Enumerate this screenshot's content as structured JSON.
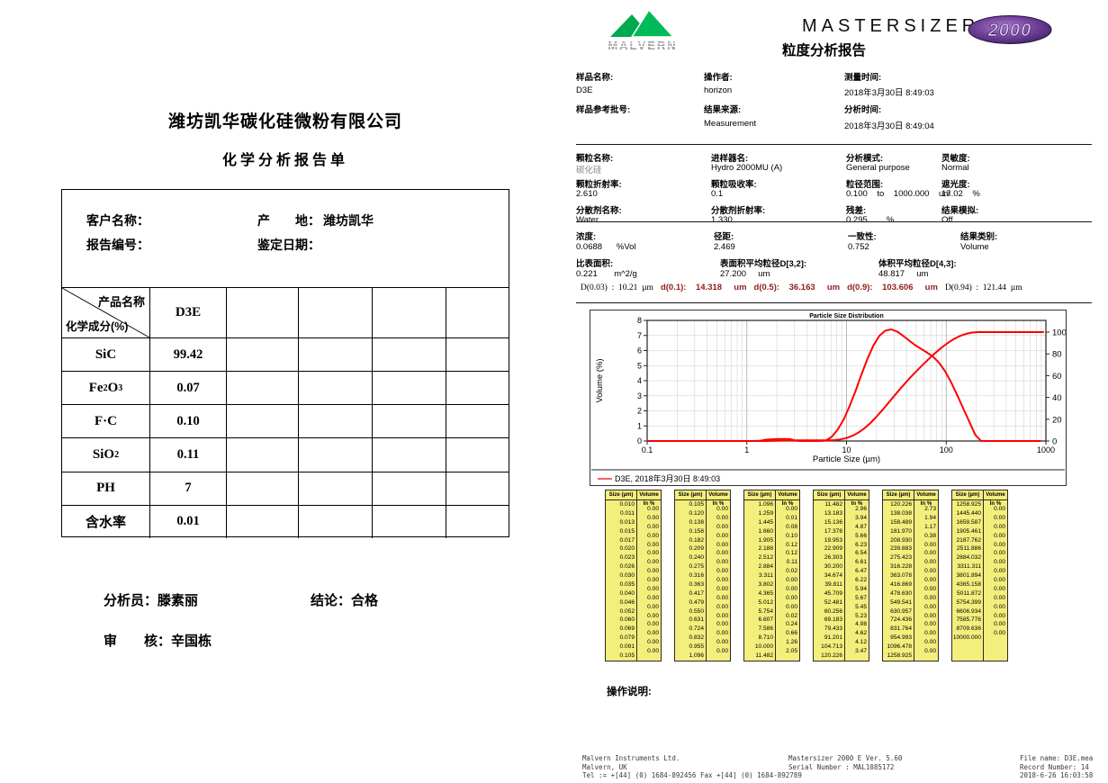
{
  "left_doc": {
    "title": "潍坊凯华碳化硅微粉有限公司",
    "subtitle": "化学分析报告单",
    "info": {
      "customer_label": "客户名称：",
      "origin_label": "产　　地：",
      "origin_value": "潍坊凯华",
      "report_no_label": "报告编号：",
      "assess_date_label": "鉴定日期："
    },
    "table": {
      "corner_top": "产品名称",
      "corner_bottom": "化学成分(%)",
      "product_name": "D3E",
      "extra_columns": 4,
      "rows": [
        {
          "formula": [
            [
              "t",
              "SiC"
            ]
          ],
          "value": "99.42"
        },
        {
          "formula": [
            [
              "t",
              "Fe"
            ],
            [
              "s",
              "2"
            ],
            [
              "t",
              "O"
            ],
            [
              "s",
              "3"
            ]
          ],
          "value": "0.07"
        },
        {
          "formula": [
            [
              "t",
              "F·C"
            ]
          ],
          "value": "0.10"
        },
        {
          "formula": [
            [
              "t",
              "SiO"
            ],
            [
              "s",
              "2"
            ]
          ],
          "value": "0.11"
        },
        {
          "formula": [
            [
              "t",
              "PH"
            ]
          ],
          "value": "7"
        },
        {
          "formula": [
            [
              "t",
              "含水率"
            ]
          ],
          "value": "0.01"
        }
      ]
    },
    "signoff": {
      "analyst_label": "分析员：",
      "analyst": "滕素丽",
      "conclusion_label": "结论：",
      "conclusion": "合格",
      "reviewer_label": "审　　核：",
      "reviewer": "辛国栋"
    }
  },
  "right_doc": {
    "brand": {
      "logo_text": "MALVERN",
      "product": "MASTERSIZER",
      "badge": "2000",
      "report_title": "粒度分析报告"
    },
    "sample": {
      "fields": [
        {
          "label": "样品名称:",
          "value": "D3E"
        },
        {
          "label": "操作者:",
          "value": "horizon"
        },
        {
          "label": "测量时间:",
          "value": "2018年3月30日 8:49:03"
        },
        {
          "label": "样品参考批号:",
          "value": ""
        },
        {
          "label": "结果来源:",
          "value": "Measurement"
        },
        {
          "label": "分析时间:",
          "value": "2018年3月30日 8:49:04"
        }
      ]
    },
    "params": [
      {
        "label": "颗粒名称:",
        "value": "碳化硅",
        "muted": true
      },
      {
        "label": "进样器名:",
        "value": "Hydro 2000MU (A)"
      },
      {
        "label": "分析模式:",
        "value": "General purpose"
      },
      {
        "label": "灵敏度:",
        "value": "Normal"
      },
      {
        "label": "颗粒折射率:",
        "value": "2.610"
      },
      {
        "label": "颗粒吸收率:",
        "value": "0.1"
      },
      {
        "label": "粒径范围:",
        "value": "0.100    to    1000.000    um"
      },
      {
        "label": "遮光度:",
        "value": "17.02    %"
      },
      {
        "label": "分散剂名称:",
        "value": "Water"
      },
      {
        "label": "分散剂折射率:",
        "value": "1.330"
      },
      {
        "label": "残差:",
        "value": "0.295        %"
      },
      {
        "label": "结果模拟:",
        "value": "Off"
      }
    ],
    "results_row1": [
      {
        "label": "浓度:",
        "value": "0.0688      %Vol"
      },
      {
        "label": "径距:",
        "value": "2.469"
      },
      {
        "label": "一致性:",
        "value": "0.752"
      },
      {
        "label": "结果类别:",
        "value": "Volume"
      }
    ],
    "results_row2": [
      {
        "label": "比表面积:",
        "value": "0.221       m^2/g"
      },
      {
        "label": "表面积平均粒径D[3,2]:",
        "value": "27.200     um"
      },
      {
        "label": "体积平均粒径D[4,3]:",
        "value": "48.817     um"
      }
    ],
    "d_line": [
      {
        "text": "D(0.03)  :  10.21  µm",
        "red": false
      },
      {
        "text": "d(0.1):    14.318     um",
        "red": true
      },
      {
        "text": "d(0.5):    36.163     um",
        "red": true
      },
      {
        "text": "d(0.9):    103.606     um",
        "red": true
      },
      {
        "text": "D(0.94)  :  121.44  µm",
        "red": false
      }
    ],
    "size_table_headers": [
      "Size (µm)",
      "Volume In %"
    ],
    "operation_label": "操作说明:",
    "footer": {
      "left": [
        "Malvern Instruments Ltd.",
        "Malvern, UK",
        "Tel := +[44] (0) 1684-892456 Fax +[44] (0) 1684-892789"
      ],
      "center": [
        "Mastersizer 2000 E Ver. 5.60",
        "Serial Number : MAL1085172"
      ],
      "right": [
        "File name: D3E.mea",
        "Record Number: 14",
        "2018-6-26 16:03:58"
      ]
    }
  },
  "chart_data": {
    "type": "line",
    "title": "Particle Size Distribution",
    "xlabel": "Particle Size (µm)",
    "ylabel": "Volume (%)",
    "xscale": "log",
    "xlim": [
      0.1,
      1000
    ],
    "ylim_left": [
      0,
      8
    ],
    "ylim_right": [
      0,
      100
    ],
    "xticks": [
      0.1,
      1,
      10,
      100,
      1000
    ],
    "yticks_left": [
      0,
      1,
      2,
      3,
      4,
      5,
      6,
      7,
      8
    ],
    "yticks_right": [
      0,
      20,
      40,
      60,
      80,
      100
    ],
    "grid": true,
    "legend": "D3E, 2018年3月30日 8:49:03",
    "legend_position": "bottom",
    "series_color": "#fe0000",
    "series": [
      {
        "name": "volume frequency",
        "axis": "left"
      },
      {
        "name": "cumulative undersize",
        "axis": "right"
      }
    ],
    "bins_um": [
      0.01,
      0.011,
      0.013,
      0.015,
      0.017,
      0.02,
      0.023,
      0.026,
      0.03,
      0.035,
      0.04,
      0.046,
      0.052,
      0.06,
      0.069,
      0.079,
      0.091,
      0.105,
      0.12,
      0.138,
      0.158,
      0.182,
      0.209,
      0.24,
      0.275,
      0.316,
      0.363,
      0.417,
      0.479,
      0.55,
      0.631,
      0.724,
      0.832,
      0.955,
      1.096,
      1.259,
      1.445,
      1.66,
      1.905,
      2.188,
      2.512,
      2.884,
      3.311,
      3.802,
      4.365,
      5.012,
      5.754,
      6.607,
      7.586,
      8.71,
      10.0,
      11.482,
      13.183,
      15.136,
      17.378,
      19.953,
      22.909,
      26.303,
      30.2,
      34.674,
      39.811,
      45.709,
      52.481,
      60.256,
      69.183,
      79.433,
      91.201,
      104.713,
      120.226,
      138.038,
      158.489,
      181.97,
      208.93,
      239.883,
      275.423,
      316.228,
      363.078,
      416.869,
      478.63,
      549.541,
      630.957,
      724.436,
      831.764,
      954.993,
      1096.478,
      1258.925,
      1445.44,
      1659.587,
      1905.461,
      2187.762,
      2511.886,
      2884.032,
      3311.311,
      3801.894,
      4365.158,
      5011.872,
      5754.399,
      6606.934,
      7585.776,
      8709.636,
      10000.0
    ],
    "volume_in_percent": [
      0,
      0,
      0,
      0,
      0,
      0,
      0,
      0,
      0,
      0,
      0,
      0,
      0,
      0,
      0,
      0,
      0,
      0,
      0,
      0,
      0,
      0,
      0,
      0,
      0,
      0,
      0,
      0,
      0,
      0,
      0,
      0,
      0,
      0,
      0.0,
      0.01,
      0.08,
      0.1,
      0.12,
      0.12,
      0.11,
      0.02,
      0.0,
      0.0,
      0.0,
      0.0,
      0.02,
      0.24,
      0.66,
      1.26,
      2.05,
      2.96,
      3.94,
      4.87,
      5.66,
      6.23,
      6.54,
      6.61,
      6.47,
      6.22,
      5.94,
      5.67,
      5.45,
      5.23,
      4.98,
      4.62,
      4.12,
      3.47,
      2.73,
      1.94,
      1.17,
      0.38,
      0,
      0,
      0,
      0,
      0,
      0,
      0,
      0,
      0,
      0,
      0,
      0,
      0,
      0,
      0,
      0,
      0,
      0,
      0,
      0,
      0,
      0,
      0,
      0,
      0,
      0,
      0,
      0
    ]
  }
}
